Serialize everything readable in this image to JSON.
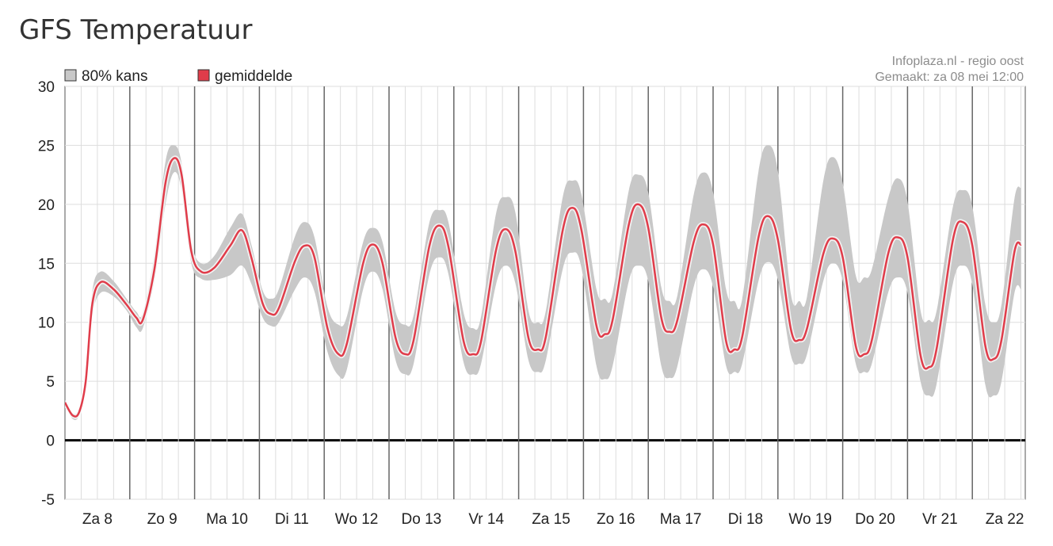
{
  "page": {
    "title": "GFS Temperatuur"
  },
  "chart_data": {
    "type": "area",
    "title": "GFS Temperatuur",
    "credit": [
      "Infoplaza.nl - regio oost",
      "Gemaakt: za 08 mei 12:00"
    ],
    "legend": [
      {
        "key": "band",
        "label": "80% kans",
        "color": "#c8c8c8"
      },
      {
        "key": "mean",
        "label": "gemiddelde",
        "color": "#e03c4a"
      }
    ],
    "legend_position": "top-left",
    "x_unit": "days from start of Za 8",
    "xlim": [
      0,
      14.75
    ],
    "ylim": [
      -5,
      30
    ],
    "yticks": [
      -5,
      0,
      5,
      10,
      15,
      20,
      25,
      30
    ],
    "grid": true,
    "day_labels": [
      "Za 8",
      "Zo 9",
      "Ma 10",
      "Di 11",
      "Wo 12",
      "Do 13",
      "Vr 14",
      "Za 15",
      "Zo 16",
      "Ma 17",
      "Di 18",
      "Wo 19",
      "Do 20",
      "Vr 21",
      "Za 22"
    ],
    "series": [
      {
        "name": "gemiddelde",
        "color": "#e03c4a",
        "points": [
          [
            0.0,
            3.2
          ],
          [
            0.12,
            2.1
          ],
          [
            0.22,
            2.4
          ],
          [
            0.32,
            5.0
          ],
          [
            0.42,
            11.5
          ],
          [
            0.55,
            13.4
          ],
          [
            0.75,
            12.8
          ],
          [
            0.95,
            11.5
          ],
          [
            1.1,
            10.4
          ],
          [
            1.2,
            10.2
          ],
          [
            1.38,
            14.5
          ],
          [
            1.55,
            21.8
          ],
          [
            1.68,
            23.9
          ],
          [
            1.8,
            22.5
          ],
          [
            1.95,
            16.0
          ],
          [
            2.1,
            14.3
          ],
          [
            2.3,
            14.6
          ],
          [
            2.55,
            16.5
          ],
          [
            2.73,
            17.8
          ],
          [
            2.88,
            15.4
          ],
          [
            3.05,
            11.6
          ],
          [
            3.18,
            10.7
          ],
          [
            3.3,
            11.2
          ],
          [
            3.55,
            15.2
          ],
          [
            3.7,
            16.5
          ],
          [
            3.85,
            15.5
          ],
          [
            4.05,
            9.5
          ],
          [
            4.22,
            7.3
          ],
          [
            4.35,
            8.2
          ],
          [
            4.6,
            15.0
          ],
          [
            4.75,
            16.6
          ],
          [
            4.9,
            15.0
          ],
          [
            5.1,
            8.7
          ],
          [
            5.25,
            7.3
          ],
          [
            5.38,
            8.5
          ],
          [
            5.62,
            16.4
          ],
          [
            5.78,
            18.2
          ],
          [
            5.92,
            16.3
          ],
          [
            6.15,
            8.4
          ],
          [
            6.3,
            7.3
          ],
          [
            6.42,
            8.4
          ],
          [
            6.65,
            16.1
          ],
          [
            6.8,
            17.9
          ],
          [
            6.95,
            16.0
          ],
          [
            7.15,
            8.7
          ],
          [
            7.3,
            7.7
          ],
          [
            7.42,
            8.8
          ],
          [
            7.68,
            17.8
          ],
          [
            7.83,
            19.7
          ],
          [
            7.97,
            17.8
          ],
          [
            8.2,
            9.7
          ],
          [
            8.33,
            9.0
          ],
          [
            8.45,
            10.2
          ],
          [
            8.7,
            18.3
          ],
          [
            8.85,
            20.0
          ],
          [
            9.0,
            18.0
          ],
          [
            9.2,
            10.4
          ],
          [
            9.33,
            9.2
          ],
          [
            9.45,
            10.2
          ],
          [
            9.7,
            16.8
          ],
          [
            9.85,
            18.3
          ],
          [
            10.0,
            16.6
          ],
          [
            10.2,
            8.4
          ],
          [
            10.33,
            7.7
          ],
          [
            10.45,
            8.8
          ],
          [
            10.7,
            17.2
          ],
          [
            10.85,
            19.0
          ],
          [
            11.0,
            17.0
          ],
          [
            11.2,
            9.4
          ],
          [
            11.33,
            8.5
          ],
          [
            11.45,
            9.5
          ],
          [
            11.7,
            15.8
          ],
          [
            11.85,
            17.1
          ],
          [
            12.0,
            15.5
          ],
          [
            12.2,
            8.0
          ],
          [
            12.33,
            7.3
          ],
          [
            12.45,
            8.5
          ],
          [
            12.7,
            15.8
          ],
          [
            12.85,
            17.2
          ],
          [
            13.0,
            15.5
          ],
          [
            13.2,
            7.2
          ],
          [
            13.33,
            6.2
          ],
          [
            13.45,
            7.8
          ],
          [
            13.7,
            17.0
          ],
          [
            13.85,
            18.5
          ],
          [
            14.0,
            16.5
          ],
          [
            14.2,
            8.0
          ],
          [
            14.33,
            6.9
          ],
          [
            14.45,
            8.5
          ],
          [
            14.65,
            16.0
          ],
          [
            14.75,
            16.6
          ]
        ]
      },
      {
        "name": "80% kans (boven)",
        "color": "#c8c8c8",
        "points": [
          [
            0.0,
            3.4
          ],
          [
            0.12,
            2.3
          ],
          [
            0.22,
            2.7
          ],
          [
            0.32,
            5.6
          ],
          [
            0.42,
            12.6
          ],
          [
            0.55,
            14.3
          ],
          [
            0.75,
            13.5
          ],
          [
            0.95,
            12.0
          ],
          [
            1.1,
            10.9
          ],
          [
            1.2,
            10.8
          ],
          [
            1.38,
            15.8
          ],
          [
            1.55,
            23.6
          ],
          [
            1.68,
            25.0
          ],
          [
            1.8,
            23.5
          ],
          [
            1.95,
            16.8
          ],
          [
            2.1,
            15.0
          ],
          [
            2.3,
            15.6
          ],
          [
            2.55,
            18.0
          ],
          [
            2.73,
            19.2
          ],
          [
            2.88,
            16.5
          ],
          [
            3.05,
            12.7
          ],
          [
            3.18,
            12.0
          ],
          [
            3.3,
            12.8
          ],
          [
            3.55,
            17.3
          ],
          [
            3.7,
            18.5
          ],
          [
            3.85,
            17.2
          ],
          [
            4.05,
            11.3
          ],
          [
            4.22,
            9.8
          ],
          [
            4.35,
            10.5
          ],
          [
            4.6,
            16.8
          ],
          [
            4.75,
            18.0
          ],
          [
            4.9,
            16.8
          ],
          [
            5.1,
            10.9
          ],
          [
            5.25,
            9.8
          ],
          [
            5.38,
            10.6
          ],
          [
            5.62,
            18.4
          ],
          [
            5.78,
            19.5
          ],
          [
            5.92,
            18.4
          ],
          [
            6.15,
            10.8
          ],
          [
            6.3,
            9.5
          ],
          [
            6.42,
            10.5
          ],
          [
            6.65,
            19.2
          ],
          [
            6.8,
            20.6
          ],
          [
            6.95,
            19.3
          ],
          [
            7.15,
            11.0
          ],
          [
            7.3,
            10.0
          ],
          [
            7.42,
            11.0
          ],
          [
            7.68,
            20.6
          ],
          [
            7.83,
            22.0
          ],
          [
            7.97,
            20.8
          ],
          [
            8.2,
            12.8
          ],
          [
            8.33,
            12.0
          ],
          [
            8.45,
            12.5
          ],
          [
            8.7,
            21.2
          ],
          [
            8.85,
            22.5
          ],
          [
            9.0,
            21.0
          ],
          [
            9.2,
            13.0
          ],
          [
            9.33,
            11.8
          ],
          [
            9.45,
            12.3
          ],
          [
            9.7,
            20.8
          ],
          [
            9.85,
            22.7
          ],
          [
            10.0,
            21.0
          ],
          [
            10.2,
            12.8
          ],
          [
            10.33,
            11.8
          ],
          [
            10.45,
            12.0
          ],
          [
            10.7,
            22.8
          ],
          [
            10.85,
            25.0
          ],
          [
            11.0,
            22.8
          ],
          [
            11.2,
            12.4
          ],
          [
            11.33,
            11.8
          ],
          [
            11.45,
            12.2
          ],
          [
            11.7,
            22.0
          ],
          [
            11.85,
            24.0
          ],
          [
            12.0,
            21.8
          ],
          [
            12.2,
            14.0
          ],
          [
            12.33,
            13.8
          ],
          [
            12.45,
            14.5
          ],
          [
            12.7,
            20.5
          ],
          [
            12.85,
            22.2
          ],
          [
            13.0,
            20.2
          ],
          [
            13.2,
            11.0
          ],
          [
            13.33,
            10.2
          ],
          [
            13.45,
            11.0
          ],
          [
            13.7,
            19.8
          ],
          [
            13.85,
            21.2
          ],
          [
            14.0,
            19.8
          ],
          [
            14.2,
            11.5
          ],
          [
            14.33,
            10.0
          ],
          [
            14.45,
            11.5
          ],
          [
            14.65,
            20.5
          ],
          [
            14.75,
            21.4
          ]
        ]
      },
      {
        "name": "80% kans (onder)",
        "color": "#c8c8c8",
        "points": [
          [
            0.0,
            3.0
          ],
          [
            0.12,
            1.8
          ],
          [
            0.22,
            2.1
          ],
          [
            0.32,
            4.5
          ],
          [
            0.42,
            10.5
          ],
          [
            0.55,
            12.5
          ],
          [
            0.75,
            12.2
          ],
          [
            0.95,
            11.0
          ],
          [
            1.1,
            9.6
          ],
          [
            1.2,
            9.5
          ],
          [
            1.38,
            13.5
          ],
          [
            1.55,
            20.0
          ],
          [
            1.68,
            22.7
          ],
          [
            1.8,
            21.2
          ],
          [
            1.95,
            15.0
          ],
          [
            2.1,
            13.7
          ],
          [
            2.3,
            13.6
          ],
          [
            2.55,
            14.0
          ],
          [
            2.73,
            14.8
          ],
          [
            2.88,
            13.2
          ],
          [
            3.05,
            10.4
          ],
          [
            3.18,
            9.7
          ],
          [
            3.3,
            10.0
          ],
          [
            3.55,
            12.8
          ],
          [
            3.7,
            13.8
          ],
          [
            3.85,
            12.6
          ],
          [
            4.05,
            7.5
          ],
          [
            4.22,
            5.5
          ],
          [
            4.35,
            6.0
          ],
          [
            4.6,
            12.8
          ],
          [
            4.75,
            14.3
          ],
          [
            4.9,
            12.8
          ],
          [
            5.1,
            6.8
          ],
          [
            5.25,
            5.6
          ],
          [
            5.38,
            6.5
          ],
          [
            5.62,
            14.0
          ],
          [
            5.78,
            15.5
          ],
          [
            5.92,
            14.0
          ],
          [
            6.15,
            6.6
          ],
          [
            6.3,
            5.6
          ],
          [
            6.42,
            6.5
          ],
          [
            6.65,
            13.2
          ],
          [
            6.8,
            14.8
          ],
          [
            6.95,
            13.3
          ],
          [
            7.15,
            6.8
          ],
          [
            7.3,
            5.8
          ],
          [
            7.42,
            6.8
          ],
          [
            7.68,
            14.5
          ],
          [
            7.83,
            15.9
          ],
          [
            7.97,
            14.6
          ],
          [
            8.2,
            6.3
          ],
          [
            8.33,
            5.2
          ],
          [
            8.45,
            6.3
          ],
          [
            8.7,
            13.5
          ],
          [
            8.85,
            14.8
          ],
          [
            9.0,
            13.5
          ],
          [
            9.2,
            6.3
          ],
          [
            9.33,
            5.3
          ],
          [
            9.45,
            6.3
          ],
          [
            9.7,
            13.0
          ],
          [
            9.85,
            14.5
          ],
          [
            10.0,
            13.0
          ],
          [
            10.2,
            6.3
          ],
          [
            10.33,
            5.8
          ],
          [
            10.45,
            6.5
          ],
          [
            10.7,
            13.5
          ],
          [
            10.85,
            15.1
          ],
          [
            11.0,
            13.6
          ],
          [
            11.2,
            7.2
          ],
          [
            11.33,
            6.5
          ],
          [
            11.45,
            7.3
          ],
          [
            11.7,
            13.5
          ],
          [
            11.85,
            15.0
          ],
          [
            12.0,
            13.5
          ],
          [
            12.2,
            6.5
          ],
          [
            12.33,
            5.8
          ],
          [
            12.45,
            6.5
          ],
          [
            12.7,
            12.5
          ],
          [
            12.85,
            13.8
          ],
          [
            13.0,
            12.5
          ],
          [
            13.2,
            5.0
          ],
          [
            13.33,
            3.8
          ],
          [
            13.45,
            4.8
          ],
          [
            13.7,
            13.3
          ],
          [
            13.85,
            14.8
          ],
          [
            14.0,
            13.2
          ],
          [
            14.2,
            4.7
          ],
          [
            14.33,
            3.8
          ],
          [
            14.45,
            5.0
          ],
          [
            14.65,
            12.5
          ],
          [
            14.75,
            12.8
          ]
        ]
      }
    ]
  }
}
